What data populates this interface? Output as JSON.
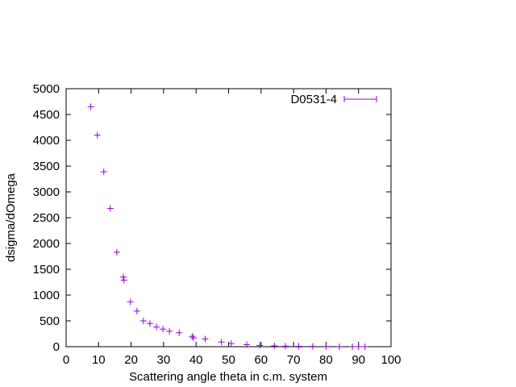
{
  "chart_data": {
    "type": "scatter",
    "xlabel": "Scattering angle theta in c.m. system",
    "ylabel": "dsigma/dOmega",
    "xlim": [
      0,
      100
    ],
    "ylim": [
      0,
      5000
    ],
    "xticks": [
      0,
      10,
      20,
      30,
      40,
      50,
      60,
      70,
      80,
      90,
      100
    ],
    "yticks": [
      0,
      500,
      1000,
      1500,
      2000,
      2500,
      3000,
      3500,
      4000,
      4500,
      5000
    ],
    "grid": false,
    "legend_position": "top-right",
    "series": [
      {
        "name": "D0531-4",
        "color": "#9400d3",
        "marker": "plus",
        "points": [
          [
            7.6,
            4650
          ],
          [
            9.6,
            4100
          ],
          [
            11.6,
            3390
          ],
          [
            13.6,
            2680
          ],
          [
            15.6,
            1830
          ],
          [
            17.6,
            1350
          ],
          [
            17.8,
            1290
          ],
          [
            19.8,
            870
          ],
          [
            21.8,
            690
          ],
          [
            23.8,
            500
          ],
          [
            25.8,
            450
          ],
          [
            27.8,
            380
          ],
          [
            29.8,
            340
          ],
          [
            31.8,
            300
          ],
          [
            34.8,
            270
          ],
          [
            38.8,
            200
          ],
          [
            39.2,
            170
          ],
          [
            42.8,
            150
          ],
          [
            47.8,
            90
          ],
          [
            50.8,
            60
          ],
          [
            55.6,
            40
          ],
          [
            59.6,
            25
          ],
          [
            64.1,
            15
          ],
          [
            67.5,
            10
          ],
          [
            71.6,
            8
          ],
          [
            75.9,
            5
          ],
          [
            80.0,
            3
          ],
          [
            84.1,
            2
          ],
          [
            88.1,
            1
          ],
          [
            90.0,
            0
          ],
          [
            92.0,
            0
          ]
        ]
      }
    ]
  }
}
